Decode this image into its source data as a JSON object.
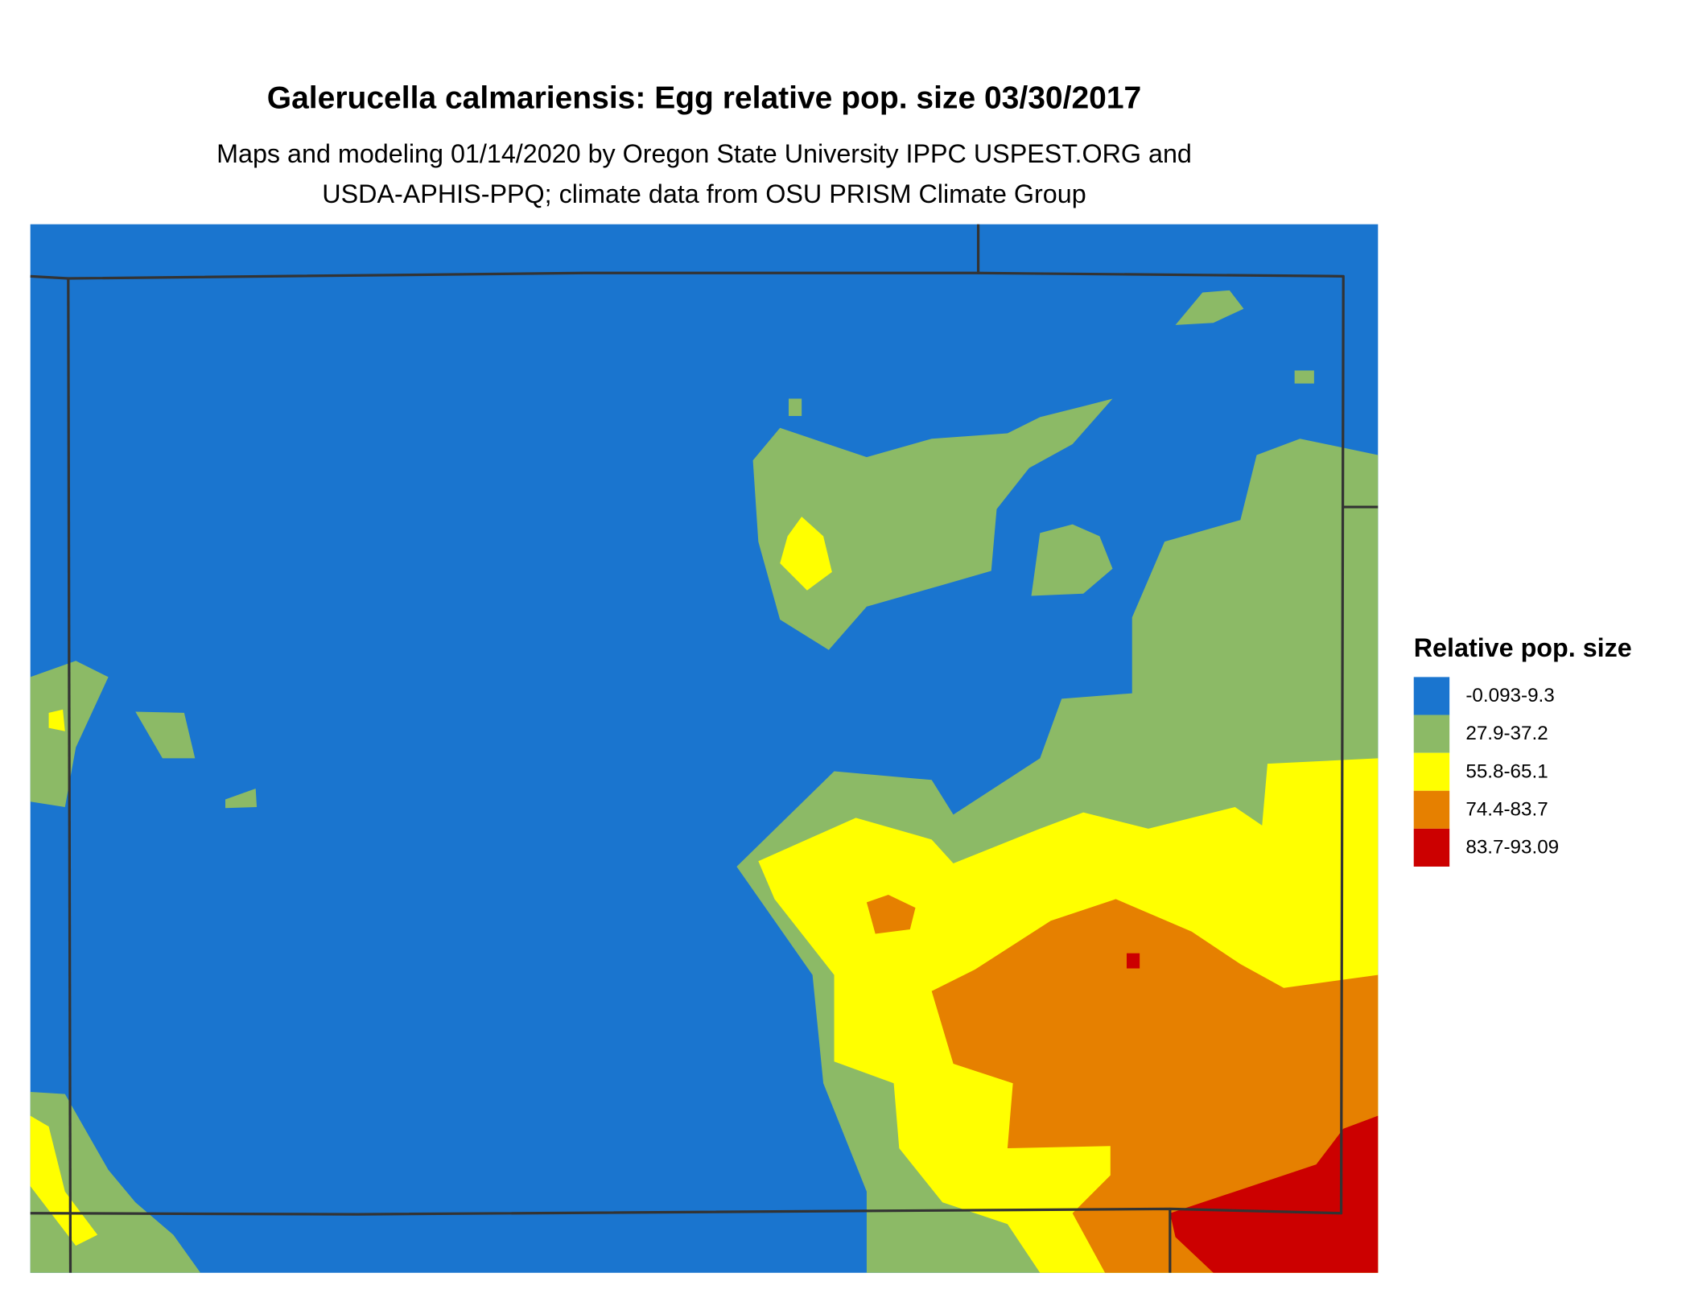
{
  "header": {
    "title": "Galerucella calmariensis: Egg relative pop. size 03/30/2017",
    "subtitle": [
      "Maps and modeling 01/14/2020 by Oregon State University IPPC USPEST.ORG and",
      "USDA-APHIS-PPQ; climate data from OSU PRISM Climate Group"
    ]
  },
  "legend": {
    "title": "Relative pop. size",
    "items": [
      {
        "label": "-0.093-9.3",
        "color": "#1a75cf"
      },
      {
        "label": "27.9-37.2",
        "color": "#8cba66"
      },
      {
        "label": "55.8-65.1",
        "color": "#ffff00"
      },
      {
        "label": "74.4-83.7",
        "color": "#e68000"
      },
      {
        "label": "83.7-93.09",
        "color": "#cc0000"
      }
    ]
  }
}
